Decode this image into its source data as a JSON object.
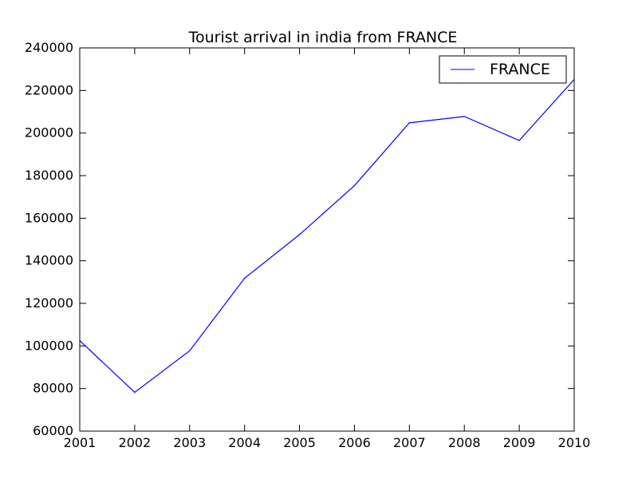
{
  "chart_data": {
    "type": "line",
    "title": "Tourist arrival in india from FRANCE",
    "xlabel": "",
    "ylabel": "",
    "x": [
      2001,
      2002,
      2003,
      2004,
      2005,
      2006,
      2007,
      2008,
      2009,
      2010
    ],
    "x_ticks": [
      "2001",
      "2002",
      "2003",
      "2004",
      "2005",
      "2006",
      "2007",
      "2008",
      "2009",
      "2010"
    ],
    "y_ticks": [
      "60000",
      "80000",
      "100000",
      "120000",
      "140000",
      "160000",
      "180000",
      "200000",
      "220000",
      "240000"
    ],
    "xlim": [
      2001,
      2010
    ],
    "ylim": [
      60000,
      240000
    ],
    "grid": false,
    "legend_position": "top-right",
    "series": [
      {
        "name": "FRANCE",
        "color": "#0000ff",
        "values": [
          102500,
          78200,
          97700,
          131800,
          152300,
          175300,
          204800,
          207800,
          196500,
          225200
        ]
      }
    ]
  }
}
